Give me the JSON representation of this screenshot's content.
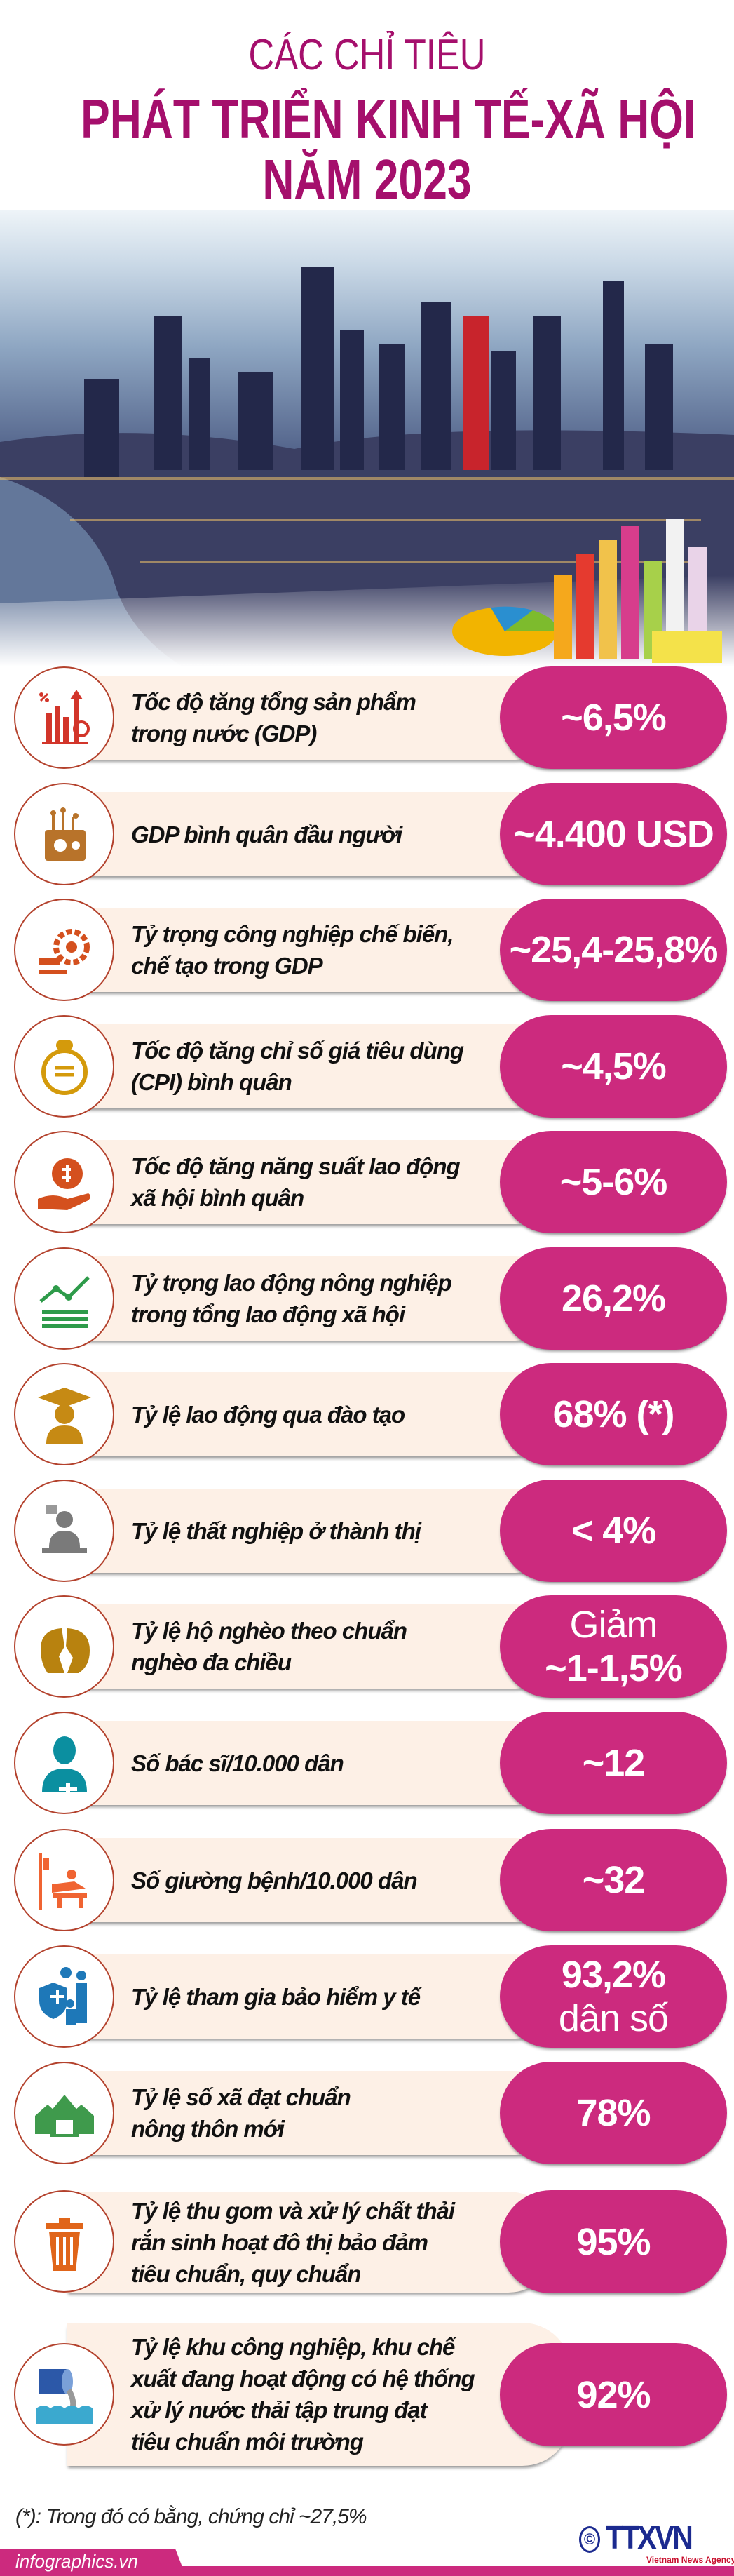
{
  "header": {
    "line1": "CÁC CHỈ TIÊU",
    "line2": "PHÁT TRIỂN KINH TẾ-XÃ HỘI",
    "line3": "NĂM 2023",
    "color": "#a50f6c"
  },
  "colors": {
    "pill": "#cc2a7e",
    "band": "#fdf0e6",
    "circle_border": "#b3412c"
  },
  "indicators": [
    {
      "icon": "gdp-growth-chart-icon",
      "label": "Tốc độ tăng tổng sản phẩm\ntrong nước (GDP)",
      "value": [
        "~6,5%"
      ]
    },
    {
      "icon": "wallet-icon",
      "label": "GDP bình quân đầu người",
      "value": [
        "~4.400 USD"
      ]
    },
    {
      "icon": "manufacturing-gear-icon",
      "label": "Tỷ trọng công nghiệp chế biến,\nchế tạo trong GDP",
      "value": [
        "~25,4-25,8%"
      ]
    },
    {
      "icon": "cpi-coin-icon",
      "label": "Tốc độ tăng chỉ số giá tiêu dùng\n(CPI) bình quân",
      "value": [
        "~4,5%"
      ]
    },
    {
      "icon": "money-bag-hand-icon",
      "label": "Tốc độ tăng năng suất lao động\nxã hội bình quân",
      "value": [
        "~5-6%"
      ]
    },
    {
      "icon": "rising-chart-icon",
      "label": "Tỷ trọng lao động nông nghiệp\ntrong tổng lao động xã hội",
      "value": [
        "26,2%"
      ]
    },
    {
      "icon": "graduate-icon",
      "label": "Tỷ lệ lao động qua đào tạo",
      "value": [
        "68% (*)"
      ]
    },
    {
      "icon": "unemployed-worker-icon",
      "label": "Tỷ lệ thất nghiệp ở thành thị",
      "value": [
        "< 4%"
      ]
    },
    {
      "icon": "broken-piggy-bank-icon",
      "label": "Tỷ lệ hộ nghèo theo chuẩn\nnghèo đa chiều",
      "value": [
        "Giảm",
        "~1-1,5%"
      ]
    },
    {
      "icon": "doctor-icon",
      "label": "Số bác sĩ/10.000 dân",
      "value": [
        "~12"
      ]
    },
    {
      "icon": "hospital-bed-icon",
      "label": "Số giường bệnh/10.000 dân",
      "value": [
        "~32"
      ]
    },
    {
      "icon": "health-insurance-family-icon",
      "label": "Tỷ lệ tham gia bảo hiểm y tế",
      "value": [
        "93,2%",
        "dân số"
      ]
    },
    {
      "icon": "village-houses-icon",
      "label": "Tỷ lệ số xã đạt chuẩn\nnông thôn mới",
      "value": [
        "78%"
      ]
    },
    {
      "icon": "trash-bin-icon",
      "label": "Tỷ lệ thu gom và xử lý chất thải\nrắn sinh hoạt đô thị bảo đảm\ntiêu chuẩn, quy chuẩn",
      "value": [
        "95%"
      ]
    },
    {
      "icon": "wastewater-pipe-icon",
      "label": "Tỷ lệ khu công nghiệp, khu chế\nxuất đang hoạt động có hệ thống\nxử lý nước thải tập trung đạt\ntiêu chuẩn môi trường",
      "value": [
        "92%"
      ]
    }
  ],
  "footnote": "(*): Trong đó có bằng, chứng chỉ ~27,5%",
  "footer": {
    "site": "infographics.vn",
    "logo_text": "TTXVN",
    "logo_copyright": "©",
    "logo_subtitle": "Vietnam News Agency"
  }
}
